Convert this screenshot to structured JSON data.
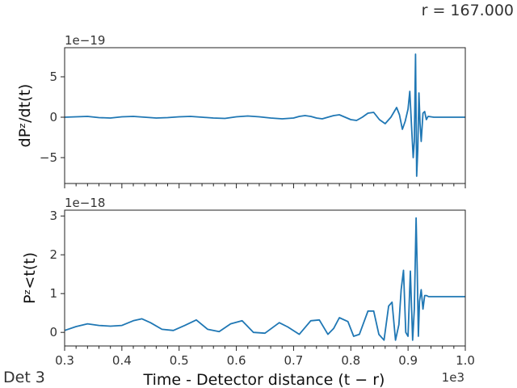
{
  "header": {
    "radius_label": "r = 167.000"
  },
  "footer": {
    "detector_label": "Det 3"
  },
  "chart_data": [
    {
      "type": "line",
      "ylabel": "dPᶻ/dt(t)",
      "offset_text": "1e−19",
      "xlim": [
        0.3,
        1.0
      ],
      "ylim": [
        -8.2,
        8.6
      ],
      "yticks": [
        {
          "value": 5,
          "label": "5"
        },
        {
          "value": 0,
          "label": "0"
        },
        {
          "value": -5,
          "label": "−5"
        }
      ],
      "grid": false,
      "series": [
        {
          "color": "#1f77b4",
          "x": [
            0.3,
            0.32,
            0.34,
            0.36,
            0.38,
            0.4,
            0.42,
            0.44,
            0.46,
            0.48,
            0.5,
            0.52,
            0.54,
            0.56,
            0.58,
            0.6,
            0.62,
            0.64,
            0.66,
            0.68,
            0.7,
            0.71,
            0.72,
            0.73,
            0.74,
            0.75,
            0.76,
            0.77,
            0.78,
            0.79,
            0.8,
            0.81,
            0.82,
            0.83,
            0.84,
            0.85,
            0.86,
            0.87,
            0.88,
            0.885,
            0.89,
            0.895,
            0.9,
            0.903,
            0.906,
            0.909,
            0.911,
            0.913,
            0.915,
            0.917,
            0.919,
            0.921,
            0.923,
            0.926,
            0.929,
            0.932,
            0.935,
            0.94,
            0.945,
            0.95,
            0.96,
            0.98,
            1.0
          ],
          "y": [
            0.0,
            0.05,
            0.1,
            -0.05,
            -0.1,
            0.05,
            0.1,
            0.0,
            -0.1,
            -0.05,
            0.05,
            0.1,
            0.0,
            -0.1,
            -0.15,
            0.05,
            0.15,
            0.05,
            -0.1,
            -0.2,
            -0.1,
            0.1,
            0.2,
            0.1,
            -0.1,
            -0.2,
            0.0,
            0.2,
            0.3,
            0.0,
            -0.3,
            -0.4,
            0.0,
            0.5,
            0.6,
            -0.3,
            -0.8,
            0.0,
            1.2,
            0.3,
            -1.5,
            -0.5,
            1.0,
            3.2,
            -1.0,
            -5.0,
            -3.0,
            7.8,
            -7.3,
            -4.0,
            3.0,
            -0.8,
            -3.0,
            0.5,
            0.7,
            -0.3,
            0.1,
            0.05,
            0.0,
            0.0,
            0.0,
            0.0,
            0.0
          ]
        }
      ]
    },
    {
      "type": "line",
      "ylabel": "Pᶻ<t(t)",
      "xlabel": "Time - Detector distance (t − r)",
      "offset_text": "1e−18",
      "x_offset_text": "1e3",
      "xlim": [
        0.3,
        1.0
      ],
      "ylim": [
        -0.35,
        3.15
      ],
      "xticks": [
        {
          "value": 0.3,
          "label": "0.3"
        },
        {
          "value": 0.4,
          "label": "0.4"
        },
        {
          "value": 0.5,
          "label": "0.5"
        },
        {
          "value": 0.6,
          "label": "0.6"
        },
        {
          "value": 0.7,
          "label": "0.7"
        },
        {
          "value": 0.8,
          "label": "0.8"
        },
        {
          "value": 0.9,
          "label": "0.9"
        },
        {
          "value": 1.0,
          "label": "1.0"
        }
      ],
      "yticks": [
        {
          "value": 3,
          "label": "3"
        },
        {
          "value": 2,
          "label": "2"
        },
        {
          "value": 1,
          "label": "1"
        },
        {
          "value": 0,
          "label": "0"
        }
      ],
      "grid": false,
      "series": [
        {
          "color": "#1f77b4",
          "x": [
            0.3,
            0.32,
            0.34,
            0.36,
            0.38,
            0.4,
            0.42,
            0.435,
            0.45,
            0.47,
            0.49,
            0.51,
            0.53,
            0.55,
            0.57,
            0.59,
            0.61,
            0.63,
            0.65,
            0.675,
            0.69,
            0.71,
            0.73,
            0.745,
            0.76,
            0.77,
            0.78,
            0.795,
            0.805,
            0.815,
            0.83,
            0.84,
            0.849,
            0.858,
            0.866,
            0.872,
            0.878,
            0.884,
            0.888,
            0.892,
            0.896,
            0.9,
            0.904,
            0.908,
            0.911,
            0.914,
            0.916,
            0.918,
            0.92,
            0.923,
            0.926,
            0.929,
            0.932,
            0.936,
            0.94,
            0.95,
            0.97,
            1.0
          ],
          "y": [
            0.05,
            0.15,
            0.22,
            0.18,
            0.16,
            0.18,
            0.3,
            0.35,
            0.25,
            0.08,
            0.05,
            0.18,
            0.32,
            0.08,
            0.02,
            0.22,
            0.3,
            0.0,
            -0.02,
            0.25,
            0.14,
            -0.05,
            0.3,
            0.32,
            -0.05,
            0.1,
            0.38,
            0.28,
            -0.1,
            -0.05,
            0.55,
            0.55,
            -0.05,
            -0.2,
            0.68,
            0.78,
            -0.2,
            0.2,
            1.1,
            1.6,
            0.0,
            -0.1,
            1.58,
            -0.2,
            0.6,
            2.95,
            1.6,
            -0.1,
            0.8,
            1.1,
            0.6,
            0.95,
            0.95,
            0.92,
            0.92,
            0.92,
            0.92,
            0.92
          ]
        }
      ]
    }
  ]
}
